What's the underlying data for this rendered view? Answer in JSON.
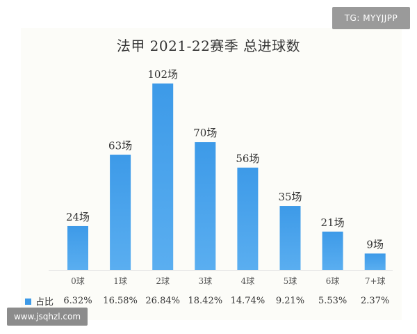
{
  "watermark_top": "TG: MYYJJPP",
  "watermark_bottom": "www.jsqhzl.com",
  "colors": {
    "bar": "#3d9ae8",
    "bar_light": "#7cc0f5",
    "panel": "#fcfcf8",
    "text": "#333333"
  },
  "chart_data": {
    "type": "bar",
    "title": "法甲 2021-22赛季 总进球数",
    "categories": [
      "0球",
      "1球",
      "2球",
      "3球",
      "4球",
      "5球",
      "6球",
      "7+球"
    ],
    "values": [
      24,
      63,
      102,
      70,
      56,
      35,
      21,
      9
    ],
    "value_labels": [
      "24场",
      "63场",
      "102场",
      "70场",
      "56场",
      "35场",
      "21场",
      "9场"
    ],
    "legend": "占比",
    "share": [
      "6.32%",
      "16.58%",
      "26.84%",
      "18.42%",
      "14.74%",
      "9.21%",
      "5.53%",
      "2.37%"
    ],
    "ylim": [
      0,
      102
    ],
    "grid": false,
    "legend_placement": "bottom-left"
  }
}
